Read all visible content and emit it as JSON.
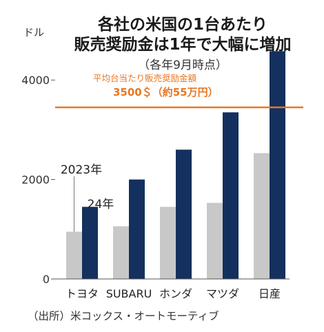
{
  "chart_data": {
    "type": "bar",
    "title_lines": [
      "各社の米国の1台あたり",
      "販売奨励金は1年で大幅に増加"
    ],
    "subtitle": "（各年9月時点）",
    "ylabel": "ドル",
    "xlabel": "",
    "ylim": [
      0,
      5000
    ],
    "yticks": [
      0,
      2000,
      4000
    ],
    "ytick_labels": [
      "0",
      "2000",
      "4000"
    ],
    "grid": false,
    "categories": [
      "トヨタ",
      "SUBARU",
      "ホンダ",
      "マツダ",
      "日産"
    ],
    "series": [
      {
        "name": "2023年",
        "color": "#c8c8c8",
        "values": [
          950,
          1060,
          1450,
          1530,
          2530
        ]
      },
      {
        "name": "24年",
        "color": "#14305e",
        "values": [
          1450,
          2000,
          2600,
          3350,
          4580
        ]
      }
    ],
    "reference_line": {
      "value": 3450,
      "color": "#e87722",
      "label": "平均台当たり販売奨励金額",
      "value_label": "3500＄（約55万円）"
    },
    "source": "（出所）米コックス・オートモーティブ"
  }
}
